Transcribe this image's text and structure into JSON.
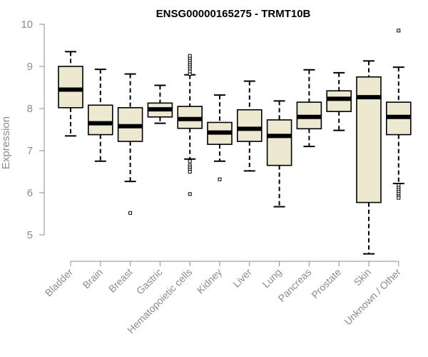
{
  "chart_data": {
    "type": "boxplot",
    "title": "ENSG00000165275 - TRMT10B",
    "xlabel": "",
    "ylabel": "Expression",
    "ylim": [
      4.5,
      10
    ],
    "yticks": [
      5,
      6,
      7,
      8,
      9,
      10
    ],
    "categories": [
      "Bladder",
      "Brain",
      "Breast",
      "Gastric",
      "Hematopoietic cells",
      "Kidney",
      "Liver",
      "Lung",
      "Pancreas",
      "Prostate",
      "Skin",
      "Unknown / Other"
    ],
    "boxes": [
      {
        "name": "Bladder",
        "whisker_low": 7.35,
        "q1": 8.02,
        "median": 8.45,
        "q3": 9.0,
        "whisker_high": 9.35,
        "outliers": []
      },
      {
        "name": "Brain",
        "whisker_low": 6.75,
        "q1": 7.38,
        "median": 7.65,
        "q3": 8.08,
        "whisker_high": 8.93,
        "outliers": []
      },
      {
        "name": "Breast",
        "whisker_low": 6.27,
        "q1": 7.22,
        "median": 7.58,
        "q3": 8.02,
        "whisker_high": 8.82,
        "outliers": [
          5.52
        ]
      },
      {
        "name": "Gastric",
        "whisker_low": 7.65,
        "q1": 7.8,
        "median": 7.98,
        "q3": 8.13,
        "whisker_high": 8.55,
        "outliers": []
      },
      {
        "name": "Hematopoietic cells",
        "whisker_low": 6.8,
        "q1": 7.53,
        "median": 7.75,
        "q3": 8.05,
        "whisker_high": 8.8,
        "outliers": [
          8.82,
          8.88,
          8.95,
          9.0,
          9.05,
          9.1,
          9.15,
          9.2,
          9.25,
          6.75,
          6.65,
          6.6,
          6.55,
          6.5,
          5.97
        ]
      },
      {
        "name": "Kidney",
        "whisker_low": 6.75,
        "q1": 7.15,
        "median": 7.43,
        "q3": 7.67,
        "whisker_high": 8.32,
        "outliers": [
          6.32
        ]
      },
      {
        "name": "Liver",
        "whisker_low": 6.52,
        "q1": 7.22,
        "median": 7.52,
        "q3": 7.97,
        "whisker_high": 8.65,
        "outliers": []
      },
      {
        "name": "Lung",
        "whisker_low": 5.67,
        "q1": 6.65,
        "median": 7.35,
        "q3": 7.73,
        "whisker_high": 8.18,
        "outliers": []
      },
      {
        "name": "Pancreas",
        "whisker_low": 7.1,
        "q1": 7.52,
        "median": 7.8,
        "q3": 8.15,
        "whisker_high": 8.92,
        "outliers": []
      },
      {
        "name": "Prostate",
        "whisker_low": 7.48,
        "q1": 7.93,
        "median": 8.23,
        "q3": 8.42,
        "whisker_high": 8.85,
        "outliers": []
      },
      {
        "name": "Skin",
        "whisker_low": 4.55,
        "q1": 5.77,
        "median": 8.27,
        "q3": 8.75,
        "whisker_high": 9.13,
        "outliers": []
      },
      {
        "name": "Unknown / Other",
        "whisker_low": 6.22,
        "q1": 7.38,
        "median": 7.8,
        "q3": 8.15,
        "whisker_high": 8.98,
        "outliers": [
          9.85,
          6.18,
          6.12,
          6.07,
          6.02,
          5.97,
          5.92,
          5.88
        ]
      }
    ],
    "colors": {
      "box_fill": "#ede8d0",
      "box_stroke": "#000000",
      "median": "#000000",
      "axis": "#8c8c8c"
    }
  }
}
